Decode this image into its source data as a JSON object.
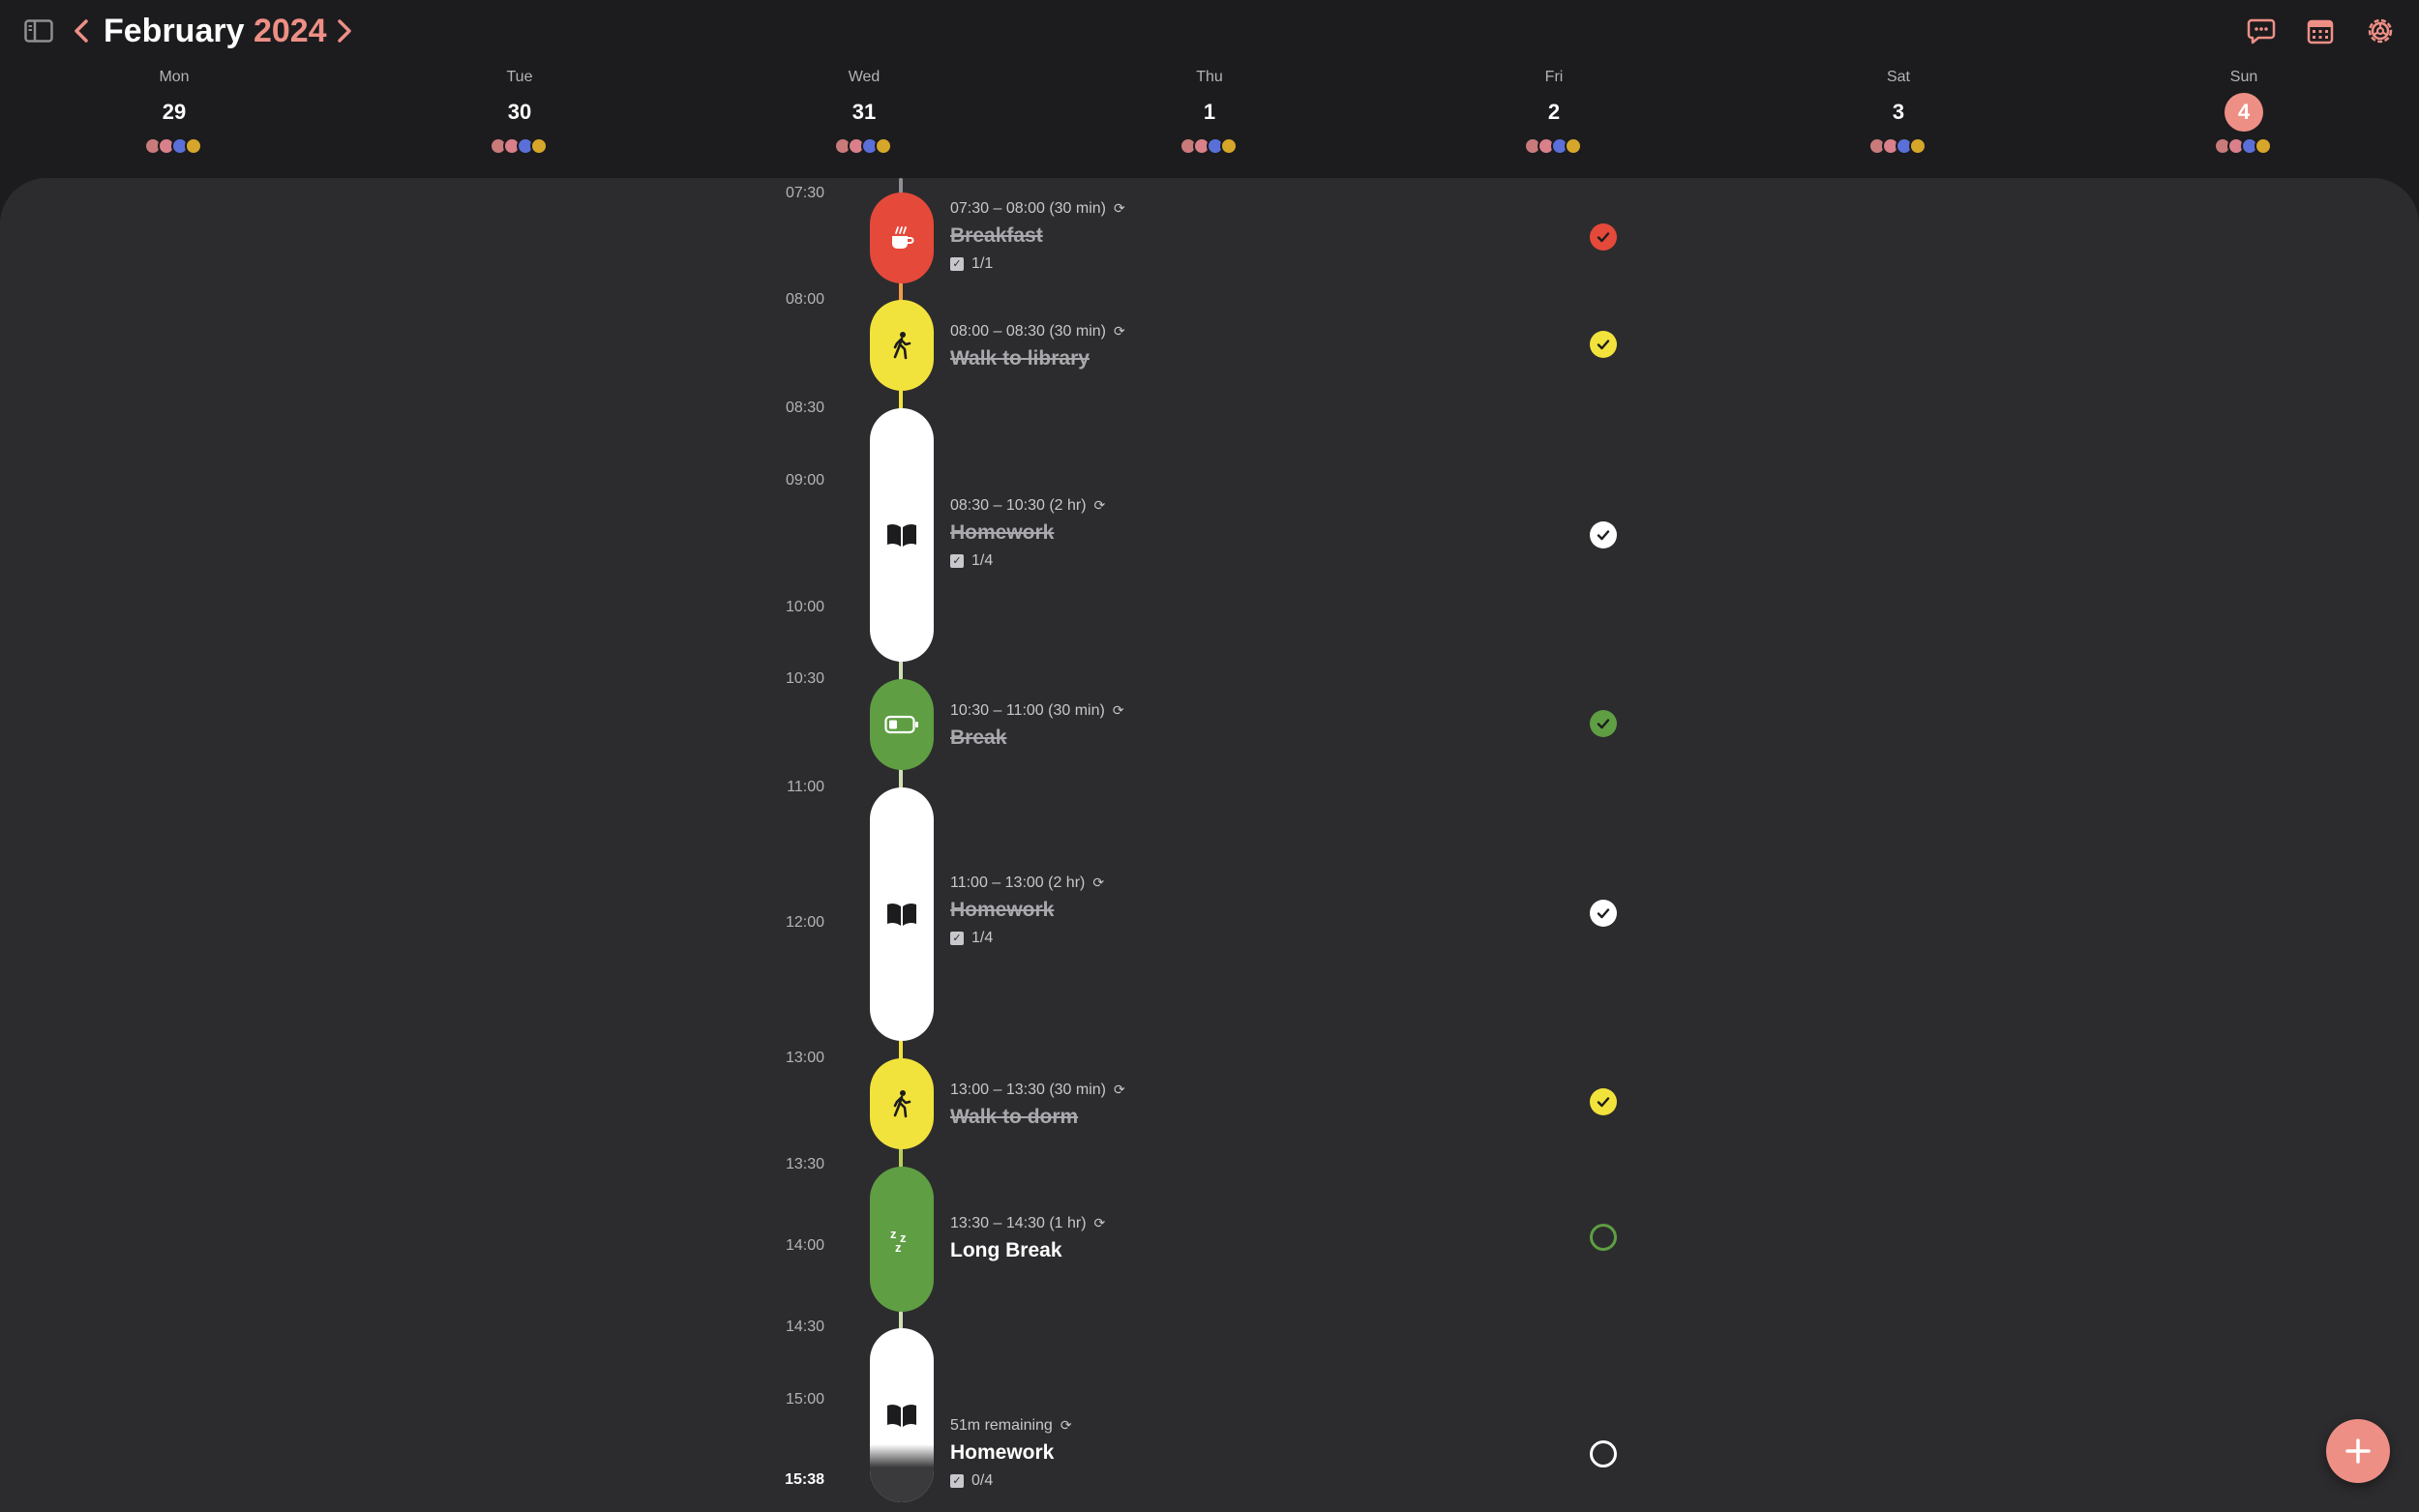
{
  "header": {
    "month": "February",
    "year": "2024",
    "icons": {
      "sidebar": "sidebar-toggle-icon",
      "prev": "chevron-left-icon",
      "next": "chevron-right-icon",
      "inbox": "inbox-chat-icon",
      "calendar": "calendar-icon",
      "settings": "settings-gear-icon"
    },
    "accent_color": "#ee8f86"
  },
  "week": [
    {
      "name": "Mon",
      "num": "29",
      "today": false
    },
    {
      "name": "Tue",
      "num": "30",
      "today": false
    },
    {
      "name": "Wed",
      "num": "31",
      "today": false
    },
    {
      "name": "Thu",
      "num": "1",
      "today": false
    },
    {
      "name": "Fri",
      "num": "2",
      "today": false
    },
    {
      "name": "Sat",
      "num": "3",
      "today": false
    },
    {
      "name": "Sun",
      "num": "4",
      "today": true
    }
  ],
  "day_dot_colors": [
    "#c97a7a",
    "#d9808a",
    "#5b6fd8",
    "#d6a62a"
  ],
  "time_labels": [
    "07:30",
    "08:00",
    "08:30",
    "09:00",
    "10:00",
    "10:30",
    "11:00",
    "12:00",
    "13:00",
    "13:30",
    "14:00",
    "14:30",
    "15:00",
    "15:38"
  ],
  "current_time": "15:38",
  "events": [
    {
      "time": "07:30 – 08:00 (30 min)",
      "title": "Breakfast",
      "sub": "1/1",
      "done": true,
      "color": "#e5493a",
      "icon": "coffee-icon"
    },
    {
      "time": "08:00 – 08:30 (30 min)",
      "title": "Walk to library",
      "sub": "",
      "done": true,
      "color": "#f2e33c",
      "icon": "walking-person-icon"
    },
    {
      "time": "08:30 – 10:30 (2 hr)",
      "title": "Homework",
      "sub": "1/4",
      "done": true,
      "color": "#ffffff",
      "icon": "book-icon"
    },
    {
      "time": "10:30 – 11:00 (30 min)",
      "title": "Break",
      "sub": "",
      "done": true,
      "color": "#5f9e43",
      "icon": "battery-low-icon"
    },
    {
      "time": "11:00 – 13:00 (2 hr)",
      "title": "Homework",
      "sub": "1/4",
      "done": true,
      "color": "#ffffff",
      "icon": "book-icon"
    },
    {
      "time": "13:00 – 13:30 (30 min)",
      "title": "Walk to dorm",
      "sub": "",
      "done": true,
      "color": "#f2e33c",
      "icon": "walking-person-icon"
    },
    {
      "time": "13:30 – 14:30 (1 hr)",
      "title": "Long Break",
      "sub": "",
      "done": false,
      "color": "#5f9e43",
      "icon": "sleep-zzz-icon"
    },
    {
      "time": "51m remaining",
      "title": "Homework",
      "sub": "0/4",
      "done": false,
      "color": "#ffffff",
      "icon": "book-icon"
    }
  ],
  "fab": {
    "icon": "plus-icon"
  }
}
